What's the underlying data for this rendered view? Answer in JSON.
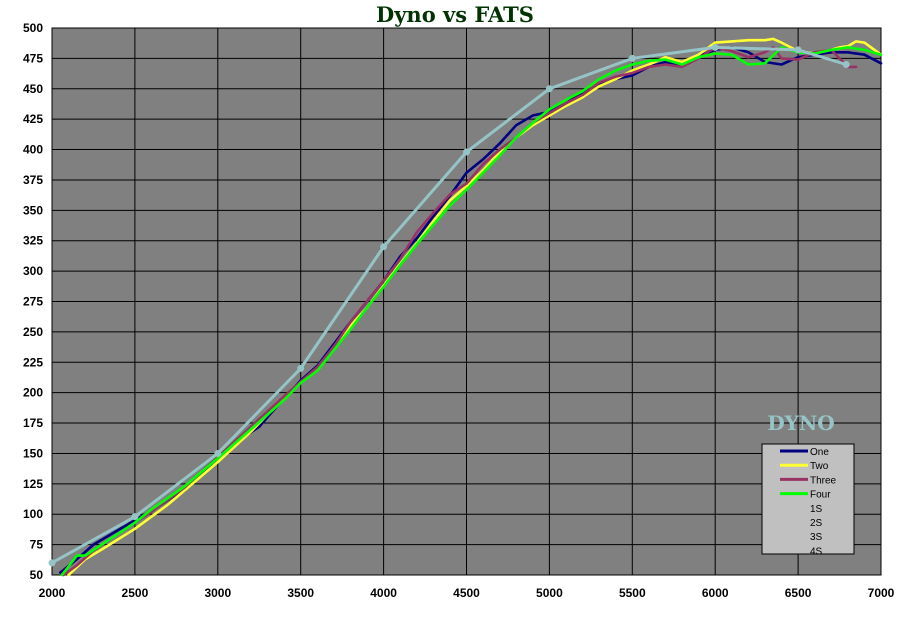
{
  "chart_data": {
    "type": "line",
    "title": "Dyno vs FATS",
    "xlabel": "",
    "ylabel": "",
    "xlim": [
      2000,
      7000
    ],
    "ylim": [
      50,
      500
    ],
    "x_ticks": [
      2000,
      2500,
      3000,
      3500,
      4000,
      4500,
      5000,
      5500,
      6000,
      6500,
      7000
    ],
    "y_ticks": [
      50,
      75,
      100,
      125,
      150,
      175,
      200,
      225,
      250,
      275,
      300,
      325,
      350,
      375,
      400,
      425,
      450,
      475,
      500
    ],
    "grid": true,
    "legend_position": "bottom-right",
    "annotation": "DYNO",
    "plot_background": "#808080",
    "series": [
      {
        "name": "One",
        "color": "#000080",
        "x": [
          2050,
          2150,
          2250,
          2400,
          2500,
          2650,
          2800,
          3000,
          3150,
          3250,
          3300,
          3400,
          3500,
          3600,
          3700,
          3800,
          3900,
          4000,
          4100,
          4200,
          4300,
          4400,
          4500,
          4600,
          4700,
          4800,
          4900,
          5000,
          5100,
          5200,
          5300,
          5400,
          5500,
          5600,
          5700,
          5800,
          5900,
          6000,
          6100,
          6200,
          6300,
          6400,
          6500,
          6600,
          6700,
          6800,
          6900,
          7000
        ],
        "y": [
          52,
          63,
          75,
          87,
          95,
          107,
          121,
          146,
          163,
          172,
          180,
          195,
          210,
          222,
          240,
          258,
          275,
          292,
          312,
          327,
          345,
          362,
          381,
          392,
          405,
          420,
          428,
          431,
          438,
          447,
          453,
          458,
          461,
          468,
          472,
          470,
          477,
          482,
          484,
          480,
          472,
          470,
          476,
          478,
          480,
          480,
          478,
          471
        ]
      },
      {
        "name": "Two",
        "color": "#ffff33",
        "x": [
          2100,
          2200,
          2300,
          2500,
          2700,
          3000,
          3200,
          3400,
          3500,
          3600,
          3700,
          3800,
          3900,
          4000,
          4100,
          4200,
          4300,
          4400,
          4500,
          4600,
          4700,
          4800,
          4900,
          5000,
          5100,
          5200,
          5300,
          5400,
          5500,
          5600,
          5700,
          5800,
          5900,
          6000,
          6100,
          6200,
          6300,
          6350,
          6400,
          6500,
          6600,
          6700,
          6750,
          6800,
          6850,
          6900,
          7000
        ],
        "y": [
          50,
          63,
          71,
          88,
          108,
          143,
          168,
          196,
          208,
          220,
          238,
          255,
          270,
          288,
          306,
          323,
          341,
          358,
          370,
          383,
          398,
          410,
          420,
          428,
          436,
          443,
          452,
          458,
          465,
          470,
          476,
          472,
          478,
          488,
          489,
          490,
          490,
          491,
          488,
          481,
          479,
          482,
          484,
          485,
          489,
          488,
          478
        ]
      },
      {
        "name": "Three",
        "color": "#993366",
        "x": [
          2070,
          2150,
          2250,
          2400,
          2600,
          2800,
          3000,
          3200,
          3400,
          3500,
          3600,
          3700,
          3800,
          3900,
          4000,
          4100,
          4200,
          4300,
          4400,
          4500,
          4600,
          4700,
          4800,
          4900,
          5000,
          5100,
          5200,
          5300,
          5400,
          5500,
          5600,
          5700,
          5800,
          5900,
          6000,
          6100,
          6200,
          6300,
          6350,
          6400,
          6500,
          6600,
          6700,
          6800,
          6850
        ],
        "y": [
          50,
          58,
          70,
          84,
          102,
          122,
          147,
          172,
          197,
          209,
          221,
          238,
          258,
          275,
          292,
          310,
          332,
          348,
          363,
          372,
          388,
          400,
          410,
          422,
          430,
          438,
          445,
          455,
          460,
          463,
          468,
          470,
          468,
          475,
          484,
          481,
          476,
          480,
          484,
          475,
          474,
          480,
          482,
          468,
          468
        ]
      },
      {
        "name": "Four",
        "color": "#00ff00",
        "x": [
          2060,
          2100,
          2150,
          2200,
          2300,
          2400,
          2500,
          2600,
          2800,
          3000,
          3200,
          3400,
          3500,
          3600,
          3700,
          3800,
          3900,
          4000,
          4100,
          4200,
          4300,
          4400,
          4500,
          4600,
          4700,
          4800,
          4900,
          5000,
          5100,
          5200,
          5300,
          5400,
          5500,
          5600,
          5700,
          5800,
          5900,
          6000,
          6100,
          6200,
          6300,
          6400,
          6500,
          6600,
          6700,
          6800,
          6900,
          7000
        ],
        "y": [
          50,
          57,
          66,
          66,
          75,
          84,
          93,
          104,
          123,
          146,
          170,
          194,
          208,
          218,
          235,
          252,
          270,
          287,
          305,
          322,
          338,
          354,
          367,
          381,
          395,
          410,
          422,
          433,
          441,
          448,
          458,
          465,
          470,
          473,
          474,
          470,
          476,
          479,
          478,
          470,
          471,
          484,
          480,
          479,
          482,
          484,
          482,
          478
        ]
      },
      {
        "name": "1S",
        "color": "#96c4c6",
        "marker": "circle",
        "x": [
          2000,
          2500,
          3000,
          3500,
          4000,
          4500,
          5000,
          5500,
          6000,
          6500,
          6790
        ],
        "y": [
          60,
          98,
          150,
          220,
          320,
          398,
          450,
          475,
          484,
          482,
          470
        ]
      },
      {
        "name": "2S",
        "color": "#96c4c6",
        "x": [],
        "y": []
      },
      {
        "name": "3S",
        "color": "#96c4c6",
        "x": [],
        "y": []
      },
      {
        "name": "4S",
        "color": "#96c4c6",
        "x": [],
        "y": []
      }
    ]
  }
}
